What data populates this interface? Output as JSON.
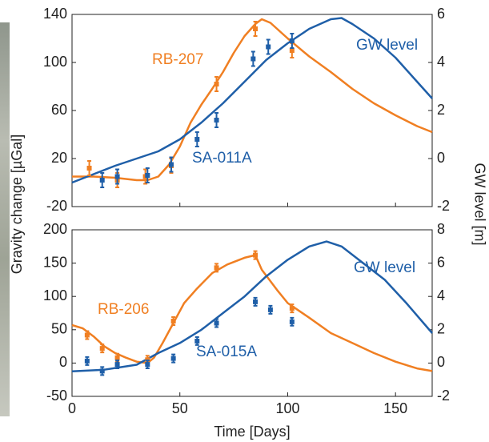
{
  "chart_data": [
    {
      "type": "line",
      "ylabel": "Gravity change [µGal]",
      "y2label": "GW level [m]",
      "xlim": [
        0,
        167
      ],
      "xticks": [
        0,
        50,
        100,
        150
      ],
      "ylim": [
        -20,
        140
      ],
      "yticks": [
        -20,
        20,
        60,
        100,
        140
      ],
      "y2lim": [
        -2,
        6
      ],
      "y2ticks": [
        -2,
        0,
        2,
        4,
        6
      ],
      "series": [
        {
          "name": "RB-207",
          "color": "#f07f22",
          "mode": "line",
          "x": [
            0,
            10,
            20,
            30,
            35,
            40,
            45,
            50,
            55,
            60,
            65,
            70,
            75,
            80,
            85,
            88,
            92,
            100,
            110,
            120,
            130,
            140,
            150,
            160,
            167
          ],
          "values": [
            5,
            5,
            4,
            2,
            2,
            5,
            15,
            30,
            50,
            65,
            78,
            92,
            108,
            122,
            132,
            136,
            133,
            120,
            105,
            92,
            78,
            66,
            56,
            47,
            42
          ]
        },
        {
          "name": "GW level",
          "color": "#1f5fa8",
          "mode": "line",
          "axis": "y2",
          "x": [
            0,
            20,
            40,
            50,
            60,
            70,
            80,
            90,
            100,
            110,
            120,
            125,
            130,
            140,
            150,
            160,
            167
          ],
          "values": [
            -1.0,
            -0.3,
            0.3,
            0.8,
            1.5,
            2.3,
            3.2,
            4.1,
            4.8,
            5.4,
            5.8,
            5.85,
            5.6,
            5.0,
            4.2,
            3.2,
            2.5
          ]
        },
        {
          "color": "#f07f22",
          "mode": "errorbar",
          "x": [
            8,
            21,
            34,
            46,
            67,
            85,
            102
          ],
          "values": [
            12,
            2,
            5,
            14,
            82,
            128,
            110
          ],
          "errors": [
            6,
            6,
            6,
            6,
            6,
            6,
            6
          ]
        },
        {
          "name": "SA-011A",
          "color": "#1f5fa8",
          "mode": "errorbar",
          "x": [
            14,
            21,
            35,
            46,
            58,
            67,
            84,
            91,
            102
          ],
          "values": [
            2,
            5,
            6,
            15,
            36,
            52,
            103,
            113,
            118
          ],
          "errors": [
            6,
            6,
            6,
            6,
            6,
            6,
            6,
            6,
            6
          ]
        }
      ]
    },
    {
      "type": "line",
      "xlabel": "Time [Days]",
      "xlim": [
        0,
        167
      ],
      "xticks": [
        0,
        50,
        100,
        150
      ],
      "ylim": [
        -50,
        200
      ],
      "yticks": [
        -50,
        0,
        50,
        100,
        150,
        200
      ],
      "y2lim": [
        -2,
        8
      ],
      "y2ticks": [
        -2,
        0,
        2,
        4,
        6,
        8
      ],
      "series": [
        {
          "name": "RB-206",
          "color": "#f07f22",
          "mode": "line",
          "x": [
            0,
            5,
            10,
            15,
            20,
            25,
            30,
            35,
            38,
            42,
            47,
            52,
            58,
            65,
            72,
            80,
            85,
            88,
            95,
            100,
            110,
            120,
            130,
            140,
            150,
            160,
            167
          ],
          "values": [
            57,
            52,
            40,
            25,
            15,
            8,
            2,
            0,
            8,
            30,
            60,
            90,
            112,
            135,
            148,
            158,
            162,
            140,
            110,
            90,
            68,
            45,
            30,
            15,
            2,
            -8,
            -12
          ]
        },
        {
          "name": "GW level",
          "color": "#1f5fa8",
          "mode": "line",
          "axis": "y2",
          "x": [
            0,
            15,
            30,
            40,
            50,
            60,
            70,
            80,
            90,
            100,
            110,
            118,
            125,
            135,
            145,
            155,
            167
          ],
          "values": [
            -0.5,
            -0.4,
            -0.1,
            0.6,
            1.2,
            2.0,
            3.0,
            4.0,
            5.2,
            6.2,
            7.0,
            7.3,
            7.0,
            6.0,
            5.0,
            3.6,
            1.8
          ]
        },
        {
          "color": "#f07f22",
          "mode": "errorbar",
          "x": [
            7,
            14,
            21,
            35,
            47,
            67,
            85,
            102
          ],
          "values": [
            42,
            22,
            8,
            5,
            63,
            143,
            162,
            82
          ],
          "errors": [
            6,
            6,
            6,
            6,
            6,
            6,
            6,
            6
          ]
        },
        {
          "name": "SA-015A",
          "color": "#1f5fa8",
          "mode": "errorbar",
          "x": [
            7,
            14,
            21,
            35,
            47,
            58,
            67,
            85,
            92,
            102
          ],
          "values": [
            3,
            -12,
            -2,
            -2,
            7,
            33,
            60,
            92,
            80,
            62
          ],
          "errors": [
            6,
            6,
            6,
            6,
            6,
            6,
            6,
            6,
            6,
            6
          ]
        }
      ]
    }
  ]
}
